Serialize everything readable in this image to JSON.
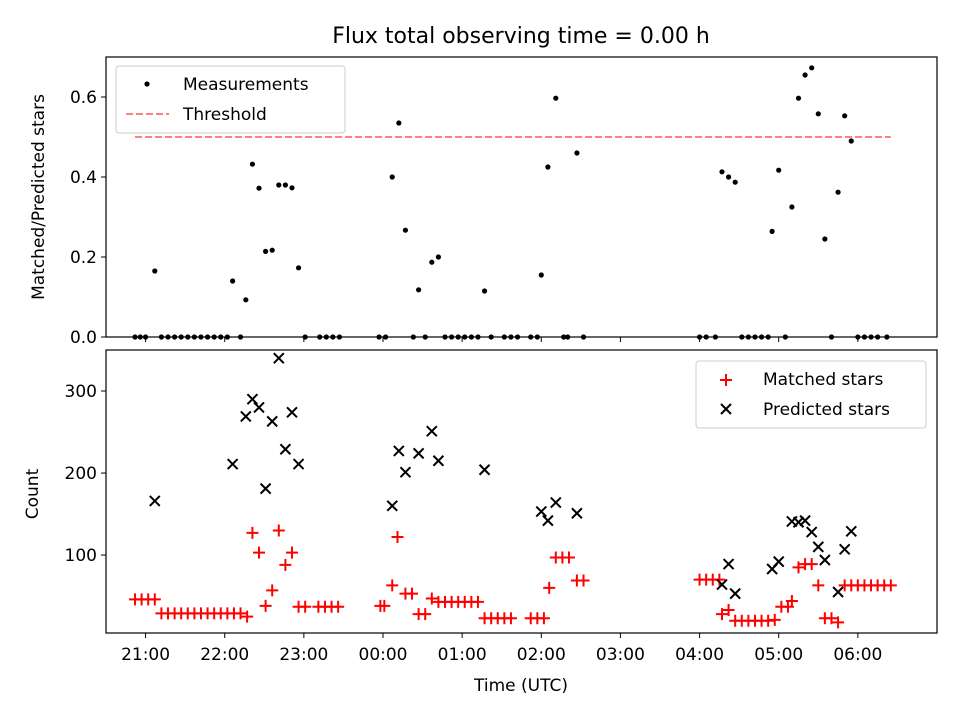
{
  "chart_data": [
    {
      "type": "scatter",
      "title": "Flux total observing time = 0.00 h",
      "xlabel": "",
      "ylabel": "Matched/Predicted stars",
      "xlim": [
        "20:30",
        "07:00"
      ],
      "ylim": [
        0,
        0.7
      ],
      "yticks": [
        0.0,
        0.2,
        0.4,
        0.6
      ],
      "ytick_labels": [
        "0.0",
        "0.2",
        "0.4",
        "0.6"
      ],
      "xticks": [
        "21:00",
        "22:00",
        "23:00",
        "00:00",
        "01:00",
        "02:00",
        "03:00",
        "04:00",
        "05:00",
        "06:00"
      ],
      "legend_position": "top-left",
      "grid": false,
      "series": [
        {
          "name": "Measurements",
          "marker": "dot",
          "color": "#000000",
          "points": [
            [
              "20:52",
              0.0
            ],
            [
              "20:56",
              0.0
            ],
            [
              "21:00",
              0.0
            ],
            [
              "21:07",
              0.165
            ],
            [
              "21:12",
              0.0
            ],
            [
              "21:17",
              0.0
            ],
            [
              "21:22",
              0.0
            ],
            [
              "21:27",
              0.0
            ],
            [
              "21:32",
              0.0
            ],
            [
              "21:37",
              0.0
            ],
            [
              "21:42",
              0.0
            ],
            [
              "21:47",
              0.0
            ],
            [
              "21:52",
              0.0
            ],
            [
              "21:57",
              0.0
            ],
            [
              "22:02",
              0.0
            ],
            [
              "22:06",
              0.14
            ],
            [
              "22:12",
              0.0
            ],
            [
              "22:16",
              0.093
            ],
            [
              "22:21",
              0.432
            ],
            [
              "22:26",
              0.372
            ],
            [
              "22:31",
              0.214
            ],
            [
              "22:36",
              0.217
            ],
            [
              "22:41",
              0.38
            ],
            [
              "22:46",
              0.38
            ],
            [
              "22:51",
              0.373
            ],
            [
              "22:56",
              0.173
            ],
            [
              "23:01",
              0.0
            ],
            [
              "23:12",
              0.0
            ],
            [
              "23:17",
              0.0
            ],
            [
              "23:22",
              0.0
            ],
            [
              "23:27",
              0.0
            ],
            [
              "23:57",
              0.0
            ],
            [
              "00:02",
              0.0
            ],
            [
              "00:07",
              0.4
            ],
            [
              "00:12",
              0.535
            ],
            [
              "00:17",
              0.267
            ],
            [
              "00:23",
              0.0
            ],
            [
              "00:27",
              0.118
            ],
            [
              "00:32",
              0.0
            ],
            [
              "00:37",
              0.187
            ],
            [
              "00:42",
              0.2
            ],
            [
              "00:47",
              0.0
            ],
            [
              "00:52",
              0.0
            ],
            [
              "00:57",
              0.0
            ],
            [
              "01:02",
              0.0
            ],
            [
              "01:07",
              0.0
            ],
            [
              "01:12",
              0.0
            ],
            [
              "01:17",
              0.115
            ],
            [
              "01:22",
              0.0
            ],
            [
              "01:32",
              0.0
            ],
            [
              "01:37",
              0.0
            ],
            [
              "01:42",
              0.0
            ],
            [
              "01:52",
              0.0
            ],
            [
              "01:57",
              0.0
            ],
            [
              "02:00",
              0.155
            ],
            [
              "02:05",
              0.425
            ],
            [
              "02:11",
              0.597
            ],
            [
              "02:17",
              0.0
            ],
            [
              "02:20",
              0.0
            ],
            [
              "02:27",
              0.46
            ],
            [
              "02:32",
              0.0
            ],
            [
              "04:00",
              0.0
            ],
            [
              "04:05",
              0.0
            ],
            [
              "04:12",
              0.0
            ],
            [
              "04:17",
              0.413
            ],
            [
              "04:22",
              0.4
            ],
            [
              "04:27",
              0.387
            ],
            [
              "04:32",
              0.0
            ],
            [
              "04:37",
              0.0
            ],
            [
              "04:42",
              0.0
            ],
            [
              "04:47",
              0.0
            ],
            [
              "04:52",
              0.0
            ],
            [
              "04:55",
              0.264
            ],
            [
              "05:00",
              0.417
            ],
            [
              "05:05",
              0.0
            ],
            [
              "05:10",
              0.325
            ],
            [
              "05:15",
              0.597
            ],
            [
              "05:20",
              0.655
            ],
            [
              "05:25",
              0.673
            ],
            [
              "05:30",
              0.558
            ],
            [
              "05:35",
              0.245
            ],
            [
              "05:40",
              0.0
            ],
            [
              "05:45",
              0.362
            ],
            [
              "05:50",
              0.553
            ],
            [
              "05:55",
              0.49
            ],
            [
              "06:00",
              0.0
            ],
            [
              "06:05",
              0.0
            ],
            [
              "06:10",
              0.0
            ],
            [
              "06:15",
              0.0
            ],
            [
              "06:22",
              0.0
            ]
          ]
        },
        {
          "name": "Threshold",
          "marker": "dashed-line",
          "color": "#ff7f7f",
          "points": [
            [
              "20:52",
              0.5
            ],
            [
              "06:25",
              0.5
            ]
          ]
        }
      ]
    },
    {
      "type": "scatter",
      "title": "",
      "xlabel": "Time (UTC)",
      "ylabel": "Count",
      "xlim": [
        "20:30",
        "07:00"
      ],
      "ylim": [
        5,
        350
      ],
      "yticks": [
        100,
        200,
        300
      ],
      "ytick_labels": [
        "100",
        "200",
        "300"
      ],
      "xticks": [
        "21:00",
        "22:00",
        "23:00",
        "00:00",
        "01:00",
        "02:00",
        "03:00",
        "04:00",
        "05:00",
        "06:00"
      ],
      "xtick_labels": [
        "21:00",
        "22:00",
        "23:00",
        "00:00",
        "01:00",
        "02:00",
        "03:00",
        "04:00",
        "05:00",
        "06:00"
      ],
      "legend_position": "top-right",
      "grid": false,
      "series": [
        {
          "name": "Matched stars",
          "marker": "plus",
          "color": "#ff0000",
          "points": [
            [
              "20:52",
              46
            ],
            [
              "20:57",
              46
            ],
            [
              "21:02",
              46
            ],
            [
              "21:07",
              46
            ],
            [
              "21:12",
              29
            ],
            [
              "21:17",
              29
            ],
            [
              "21:22",
              29
            ],
            [
              "21:27",
              29
            ],
            [
              "21:32",
              29
            ],
            [
              "21:37",
              29
            ],
            [
              "21:42",
              29
            ],
            [
              "21:47",
              29
            ],
            [
              "21:52",
              29
            ],
            [
              "21:57",
              29
            ],
            [
              "22:02",
              29
            ],
            [
              "22:07",
              29
            ],
            [
              "22:12",
              29
            ],
            [
              "22:17",
              25
            ],
            [
              "22:21",
              127
            ],
            [
              "22:26",
              103
            ],
            [
              "22:31",
              38
            ],
            [
              "22:36",
              57
            ],
            [
              "22:41",
              130
            ],
            [
              "22:46",
              88
            ],
            [
              "22:51",
              103
            ],
            [
              "22:56",
              37
            ],
            [
              "23:01",
              37
            ],
            [
              "23:11",
              37
            ],
            [
              "23:16",
              37
            ],
            [
              "23:21",
              37
            ],
            [
              "23:26",
              37
            ],
            [
              "23:58",
              38
            ],
            [
              "00:01",
              38
            ],
            [
              "00:07",
              63
            ],
            [
              "00:11",
              122
            ],
            [
              "00:17",
              53
            ],
            [
              "00:22",
              53
            ],
            [
              "00:27",
              28
            ],
            [
              "00:32",
              28
            ],
            [
              "00:37",
              47
            ],
            [
              "00:42",
              43
            ],
            [
              "00:47",
              43
            ],
            [
              "00:52",
              43
            ],
            [
              "00:57",
              43
            ],
            [
              "01:02",
              43
            ],
            [
              "01:07",
              43
            ],
            [
              "01:12",
              43
            ],
            [
              "01:17",
              23
            ],
            [
              "01:22",
              23
            ],
            [
              "01:27",
              23
            ],
            [
              "01:32",
              23
            ],
            [
              "01:37",
              23
            ],
            [
              "01:52",
              23
            ],
            [
              "01:57",
              23
            ],
            [
              "02:02",
              23
            ],
            [
              "02:06",
              60
            ],
            [
              "02:11",
              97
            ],
            [
              "02:16",
              97
            ],
            [
              "02:21",
              97
            ],
            [
              "02:27",
              69
            ],
            [
              "02:32",
              69
            ],
            [
              "04:00",
              70
            ],
            [
              "04:05",
              70
            ],
            [
              "04:10",
              70
            ],
            [
              "04:15",
              70
            ],
            [
              "04:17",
              28
            ],
            [
              "04:22",
              33
            ],
            [
              "04:27",
              20
            ],
            [
              "04:32",
              20
            ],
            [
              "04:37",
              20
            ],
            [
              "04:42",
              20
            ],
            [
              "04:47",
              20
            ],
            [
              "04:52",
              20
            ],
            [
              "04:57",
              21
            ],
            [
              "05:02",
              37
            ],
            [
              "05:07",
              37
            ],
            [
              "05:10",
              44
            ],
            [
              "05:15",
              85
            ],
            [
              "05:20",
              89
            ],
            [
              "05:25",
              89
            ],
            [
              "05:30",
              63
            ],
            [
              "05:35",
              23
            ],
            [
              "05:40",
              23
            ],
            [
              "05:45",
              18
            ],
            [
              "05:50",
              63
            ],
            [
              "05:55",
              63
            ],
            [
              "06:00",
              63
            ],
            [
              "06:05",
              63
            ],
            [
              "06:10",
              63
            ],
            [
              "06:15",
              63
            ],
            [
              "06:20",
              63
            ],
            [
              "06:25",
              63
            ]
          ]
        },
        {
          "name": "Predicted stars",
          "marker": "x",
          "color": "#000000",
          "points": [
            [
              "21:07",
              166
            ],
            [
              "22:06",
              211
            ],
            [
              "22:16",
              269
            ],
            [
              "22:21",
              290
            ],
            [
              "22:26",
              280
            ],
            [
              "22:31",
              181
            ],
            [
              "22:36",
              263
            ],
            [
              "22:41",
              340
            ],
            [
              "22:46",
              229
            ],
            [
              "22:51",
              274
            ],
            [
              "22:56",
              211
            ],
            [
              "00:07",
              160
            ],
            [
              "00:12",
              227
            ],
            [
              "00:17",
              201
            ],
            [
              "00:27",
              224
            ],
            [
              "00:37",
              251
            ],
            [
              "00:42",
              215
            ],
            [
              "01:17",
              204
            ],
            [
              "02:00",
              153
            ],
            [
              "02:05",
              142
            ],
            [
              "02:11",
              164
            ],
            [
              "02:27",
              151
            ],
            [
              "04:17",
              64
            ],
            [
              "04:22",
              89
            ],
            [
              "04:27",
              53
            ],
            [
              "04:55",
              83
            ],
            [
              "05:00",
              92
            ],
            [
              "05:10",
              141
            ],
            [
              "05:15",
              140
            ],
            [
              "05:20",
              142
            ],
            [
              "05:25",
              128
            ],
            [
              "05:30",
              110
            ],
            [
              "05:35",
              94
            ],
            [
              "05:45",
              55
            ],
            [
              "05:50",
              107
            ],
            [
              "05:55",
              129
            ]
          ]
        }
      ]
    }
  ]
}
